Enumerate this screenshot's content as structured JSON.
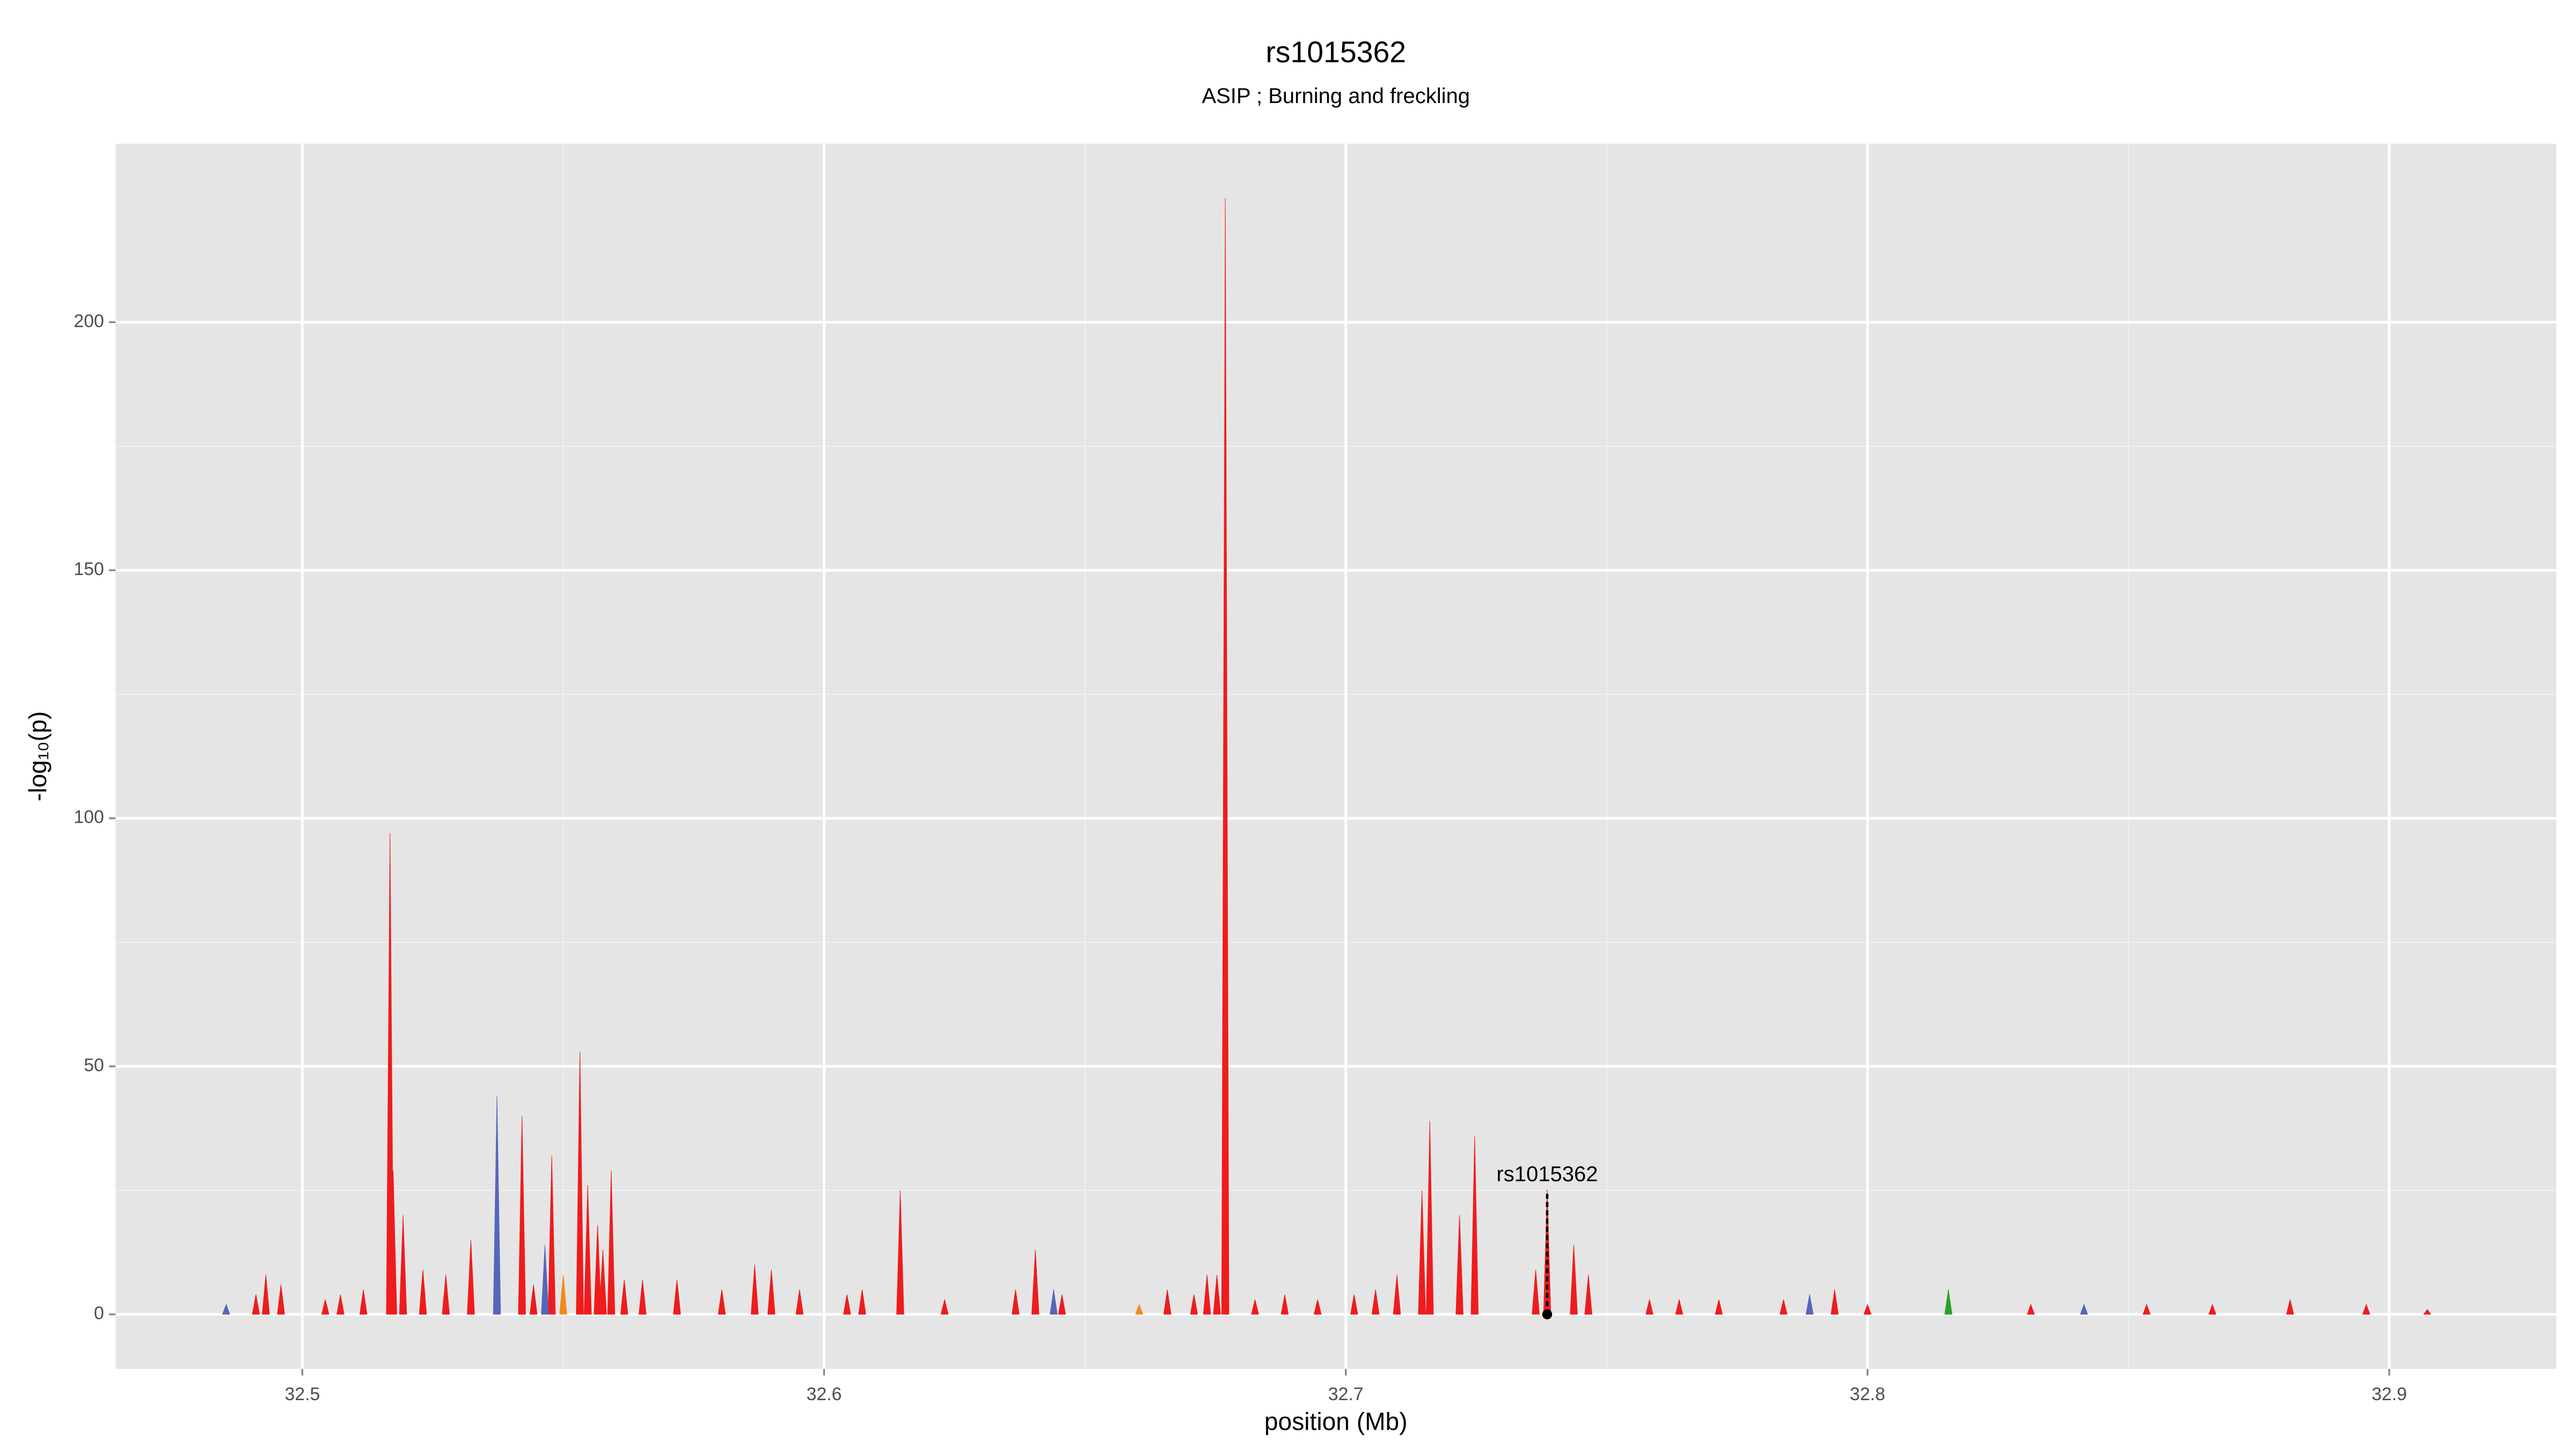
{
  "chart_data": {
    "type": "spike",
    "title": "rs1015362",
    "subtitle": "ASIP ; Burning and freckling",
    "x_label": "position (Mb)",
    "y_label": "-log₁₀(p)",
    "xlim": [
      32.4642,
      32.932
    ],
    "ylim": [
      -11,
      236
    ],
    "xticks": [
      32.5,
      32.6,
      32.7,
      32.8,
      32.9
    ],
    "yticks": [
      0,
      50,
      100,
      150,
      200
    ],
    "grid": true,
    "minor_grid": true,
    "series": [
      {
        "color": "#ee1c1c",
        "x": [
          32.4911,
          32.493,
          32.4959,
          32.5044,
          32.5073,
          32.5117,
          32.5168,
          32.5174,
          32.5193,
          32.5231,
          32.5275,
          32.5323,
          32.5421,
          32.5443,
          32.5478,
          32.5532,
          32.5547,
          32.5566,
          32.5576,
          32.5592,
          32.5617,
          32.5652,
          32.5718,
          32.5804,
          32.5867,
          32.5899,
          32.5953,
          32.6044,
          32.6073,
          32.6146,
          32.6231,
          32.6367,
          32.6405,
          32.6456,
          32.6658,
          32.6709,
          32.6734,
          32.6753,
          32.6769,
          32.6826,
          32.6883,
          32.6946,
          32.7016,
          32.7057,
          32.7098,
          32.7146,
          32.7161,
          32.7218,
          32.7247,
          32.7364,
          32.7386,
          32.7437,
          32.7465,
          32.7582,
          32.7639,
          32.7715,
          32.7839,
          32.7937,
          32.8,
          32.8313,
          32.8535,
          32.8661,
          32.881,
          32.8956,
          32.9073
        ],
        "values": [
          4,
          8,
          6,
          3,
          4,
          5,
          97,
          29,
          20,
          9,
          8,
          15,
          40,
          6,
          32,
          53,
          26,
          18,
          13,
          29,
          7,
          7,
          7,
          5,
          10,
          9,
          5,
          4,
          5,
          25,
          3,
          5,
          13,
          4,
          5,
          4,
          8,
          8,
          225,
          3,
          4,
          3,
          4,
          5,
          8,
          25,
          39,
          20,
          36,
          9,
          25,
          14,
          8,
          3,
          3,
          3,
          3,
          5,
          2,
          2,
          2,
          2,
          3,
          2,
          1
        ]
      },
      {
        "color": "#5566bb",
        "x": [
          32.4854,
          32.5373,
          32.5465,
          32.644,
          32.7889,
          32.8415
        ],
        "values": [
          2,
          44,
          14,
          5,
          4,
          2
        ]
      },
      {
        "color": "#f08a1c",
        "x": [
          32.55,
          32.6604
        ],
        "values": [
          8,
          2
        ]
      },
      {
        "color": "#2ca02c",
        "x": [
          32.8155
        ],
        "values": [
          5
        ]
      }
    ],
    "annotation": {
      "text": "rs1015362",
      "x": 32.7386,
      "y": 25
    }
  }
}
